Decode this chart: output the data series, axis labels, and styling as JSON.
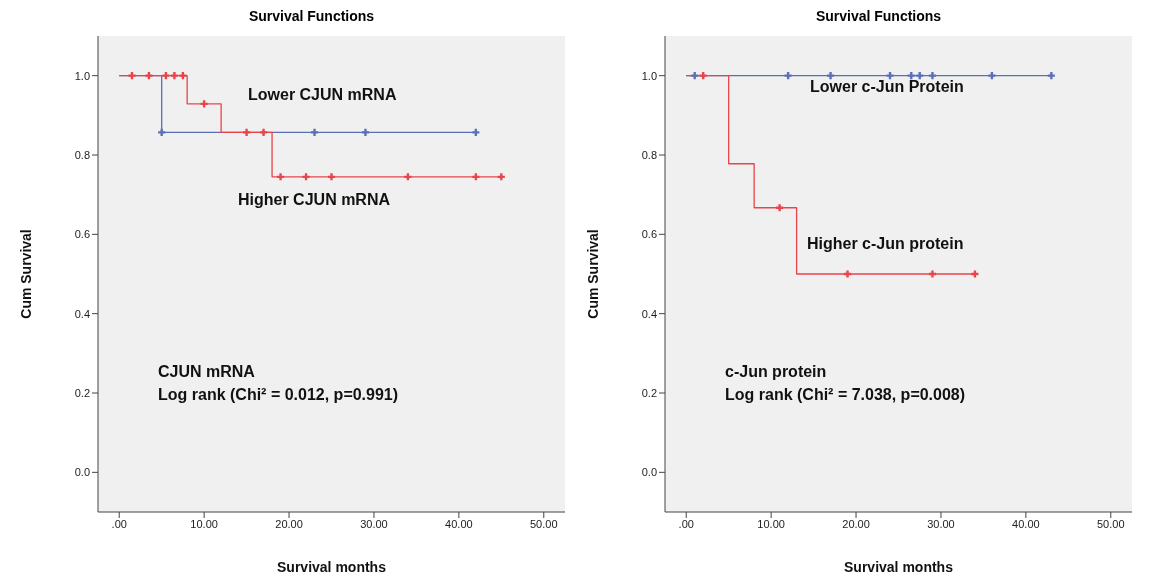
{
  "chart_data": [
    {
      "type": "step",
      "title": "Survival Functions",
      "xlabel": "Survival months",
      "ylabel": "Cum Survival",
      "xlim": [
        -2.5,
        52.5
      ],
      "ylim": [
        -0.1,
        1.1
      ],
      "xticks": [
        {
          "value": 0,
          "label": ".00"
        },
        {
          "value": 10,
          "label": "10.00"
        },
        {
          "value": 20,
          "label": "20.00"
        },
        {
          "value": 30,
          "label": "30.00"
        },
        {
          "value": 40,
          "label": "40.00"
        },
        {
          "value": 50,
          "label": "50.00"
        }
      ],
      "yticks": [
        {
          "value": 0,
          "label": "0.0"
        },
        {
          "value": 0.2,
          "label": "0.2"
        },
        {
          "value": 0.4,
          "label": "0.4"
        },
        {
          "value": 0.6,
          "label": "0.6"
        },
        {
          "value": 0.8,
          "label": "0.8"
        },
        {
          "value": 1,
          "label": "1.0"
        }
      ],
      "grid": false,
      "legend": false,
      "series": [
        {
          "color": "#5a6fb5",
          "x": [
            0,
            5,
            42
          ],
          "values": [
            1,
            0.857,
            0.857
          ]
        },
        {
          "color": "#e8444a",
          "x": [
            0,
            8,
            12,
            18,
            45
          ],
          "values": [
            1,
            0.929,
            0.857,
            0.745,
            0.745
          ]
        },
        {
          "type": "scatter",
          "marker": "cross",
          "color": "#5a6fb5",
          "x": [
            5,
            23,
            29,
            42
          ],
          "values": [
            0.857,
            0.857,
            0.857,
            0.857
          ]
        },
        {
          "type": "scatter",
          "marker": "cross",
          "color": "#e8444a",
          "x": [
            1.5,
            3.5,
            5.5,
            6.5,
            7.5,
            10,
            15,
            17,
            19,
            22,
            25,
            34,
            42,
            45
          ],
          "values": [
            1,
            1,
            1,
            1,
            1,
            0.929,
            0.857,
            0.857,
            0.745,
            0.745,
            0.745,
            0.745,
            0.745,
            0.745
          ]
        }
      ],
      "annotations": [
        "Lower CJUN mRNA",
        "Higher CJUN mRNA",
        "CJUN mRNA",
        "Log rank (Chi² = 0.012, p=0.991)"
      ]
    },
    {
      "type": "step",
      "title": "Survival Functions",
      "xlabel": "Survival months",
      "ylabel": "Cum Survival",
      "xlim": [
        -2.5,
        52.5
      ],
      "ylim": [
        -0.1,
        1.1
      ],
      "xticks": [
        {
          "value": 0,
          "label": ".00"
        },
        {
          "value": 10,
          "label": "10.00"
        },
        {
          "value": 20,
          "label": "20.00"
        },
        {
          "value": 30,
          "label": "30.00"
        },
        {
          "value": 40,
          "label": "40.00"
        },
        {
          "value": 50,
          "label": "50.00"
        }
      ],
      "yticks": [
        {
          "value": 0,
          "label": "0.0"
        },
        {
          "value": 0.2,
          "label": "0.2"
        },
        {
          "value": 0.4,
          "label": "0.4"
        },
        {
          "value": 0.6,
          "label": "0.6"
        },
        {
          "value": 0.8,
          "label": "0.8"
        },
        {
          "value": 1,
          "label": "1.0"
        }
      ],
      "grid": false,
      "legend": false,
      "series": [
        {
          "color": "#5a6fb5",
          "x": [
            0,
            43
          ],
          "values": [
            1,
            1
          ]
        },
        {
          "color": "#e8444a",
          "x": [
            0,
            5,
            8,
            13,
            34
          ],
          "values": [
            1,
            0.778,
            0.667,
            0.5,
            0.5
          ]
        },
        {
          "type": "scatter",
          "marker": "cross",
          "color": "#5a6fb5",
          "x": [
            1,
            12,
            17,
            24,
            26.5,
            27.5,
            29,
            36,
            43
          ],
          "values": [
            1,
            1,
            1,
            1,
            1,
            1,
            1,
            1,
            1
          ]
        },
        {
          "type": "scatter",
          "marker": "cross",
          "color": "#e8444a",
          "x": [
            2,
            11,
            19,
            29,
            34
          ],
          "values": [
            1,
            0.667,
            0.5,
            0.5,
            0.5
          ]
        }
      ],
      "annotations": [
        "Lower c-Jun Protein",
        "Higher c-Jun protein",
        "c-Jun protein",
        "Log rank (Chi² = 7.038, p=0.008)"
      ]
    }
  ]
}
